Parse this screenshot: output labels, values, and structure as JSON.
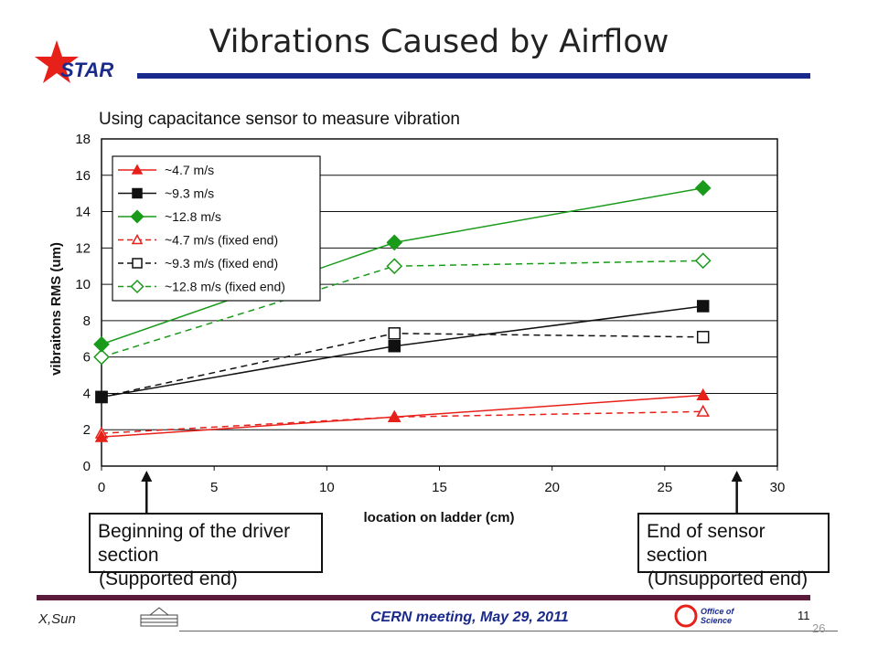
{
  "slide": {
    "title": "Vibrations Caused by Airflow",
    "logo_text": "STAR",
    "footer_author": "X,Sun",
    "footer_meeting": "CERN meeting, May 29, 2011",
    "footer_slide_number": "11",
    "page_number": "26",
    "office_logo_text": "Office of Science"
  },
  "colors": {
    "red": "#e8201a",
    "black": "#111111",
    "green": "#1a9a1a",
    "navy": "#1a2a8c",
    "maroon": "#5a1a3a"
  },
  "callouts": {
    "left_main": "Beginning of the driver section",
    "left_sub": "(Supported end)",
    "right_main": "End of sensor section",
    "right_sub": "(Unsupported end)"
  },
  "chart_data": {
    "type": "line",
    "title": "Using capacitance sensor to measure vibration",
    "xlabel": "location on ladder (cm)",
    "ylabel": "vibraitons RMS (um)",
    "xlim": [
      0,
      30
    ],
    "ylim": [
      0,
      18
    ],
    "xticks": [
      0,
      5,
      10,
      15,
      20,
      25,
      30
    ],
    "yticks": [
      0,
      2,
      4,
      6,
      8,
      10,
      12,
      14,
      16,
      18
    ],
    "grid": "horizontal",
    "legend_position": "top-left",
    "series": [
      {
        "name": "~4.7 m/s",
        "x": [
          0,
          13,
          26.7
        ],
        "y": [
          1.6,
          2.7,
          3.9
        ],
        "color": "#e8201a",
        "marker": "triangle",
        "filled": true,
        "dashed": false
      },
      {
        "name": "~9.3 m/s",
        "x": [
          0,
          13,
          26.7
        ],
        "y": [
          3.8,
          6.6,
          8.8
        ],
        "color": "#111111",
        "marker": "square",
        "filled": true,
        "dashed": false
      },
      {
        "name": "~12.8 m/s",
        "x": [
          0,
          13,
          26.7
        ],
        "y": [
          6.7,
          12.3,
          15.3
        ],
        "color": "#1a9a1a",
        "marker": "diamond",
        "filled": true,
        "dashed": false
      },
      {
        "name": "~4.7 m/s (fixed end)",
        "x": [
          0,
          13,
          26.7
        ],
        "y": [
          1.8,
          2.7,
          3.0
        ],
        "color": "#e8201a",
        "marker": "triangle",
        "filled": false,
        "dashed": true
      },
      {
        "name": "~9.3 m/s (fixed end)",
        "x": [
          0,
          13,
          26.7
        ],
        "y": [
          3.8,
          7.3,
          7.1
        ],
        "color": "#111111",
        "marker": "square",
        "filled": false,
        "dashed": true
      },
      {
        "name": "~12.8 m/s (fixed end)",
        "x": [
          0,
          13,
          26.7
        ],
        "y": [
          6.0,
          11.0,
          11.3
        ],
        "color": "#1a9a1a",
        "marker": "diamond",
        "filled": false,
        "dashed": true
      }
    ]
  }
}
